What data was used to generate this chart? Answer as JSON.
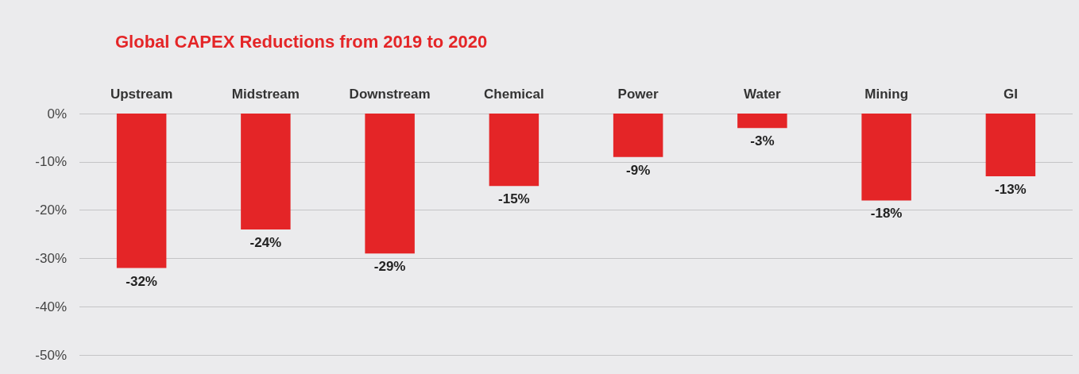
{
  "chart_data": {
    "type": "bar",
    "title": "Global CAPEX Reductions from 2019 to 2020",
    "categories": [
      "Upstream",
      "Midstream",
      "Downstream",
      "Chemical",
      "Power",
      "Water",
      "Mining",
      "GI"
    ],
    "values": [
      -32,
      -24,
      -29,
      -15,
      -9,
      -3,
      -18,
      -13
    ],
    "value_labels": [
      "-32%",
      "-24%",
      "-29%",
      "-15%",
      "-9%",
      "-3%",
      "-18%",
      "-13%"
    ],
    "color": "#e42527",
    "ylim": [
      -50,
      0
    ],
    "yticks": [
      {
        "value": 0,
        "label": "0%"
      },
      {
        "value": -10,
        "label": "-10%"
      },
      {
        "value": -20,
        "label": "-20%"
      },
      {
        "value": -30,
        "label": "-30%"
      },
      {
        "value": -40,
        "label": "-40%"
      },
      {
        "value": -50,
        "label": "-50%"
      }
    ],
    "grid": "y"
  }
}
